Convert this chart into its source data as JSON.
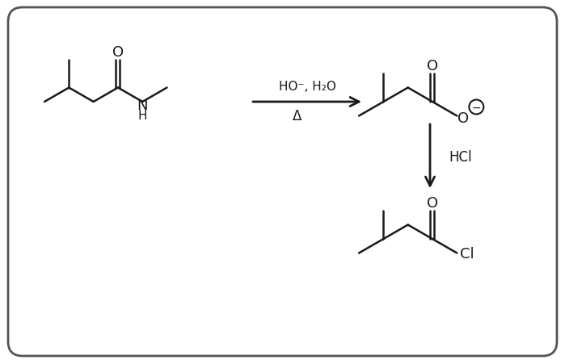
{
  "bg_color": "#ffffff",
  "border_color": "#555555",
  "line_color": "#1a1a1a",
  "text_color": "#1a1a1a",
  "fig_width": 6.99,
  "fig_height": 4.52,
  "dpi": 100,
  "reagent1_line1": "HO⁻, H₂O",
  "reagent1_line2": "Δ",
  "reagent2_text": "HCl",
  "lw": 1.8,
  "bl": 35
}
